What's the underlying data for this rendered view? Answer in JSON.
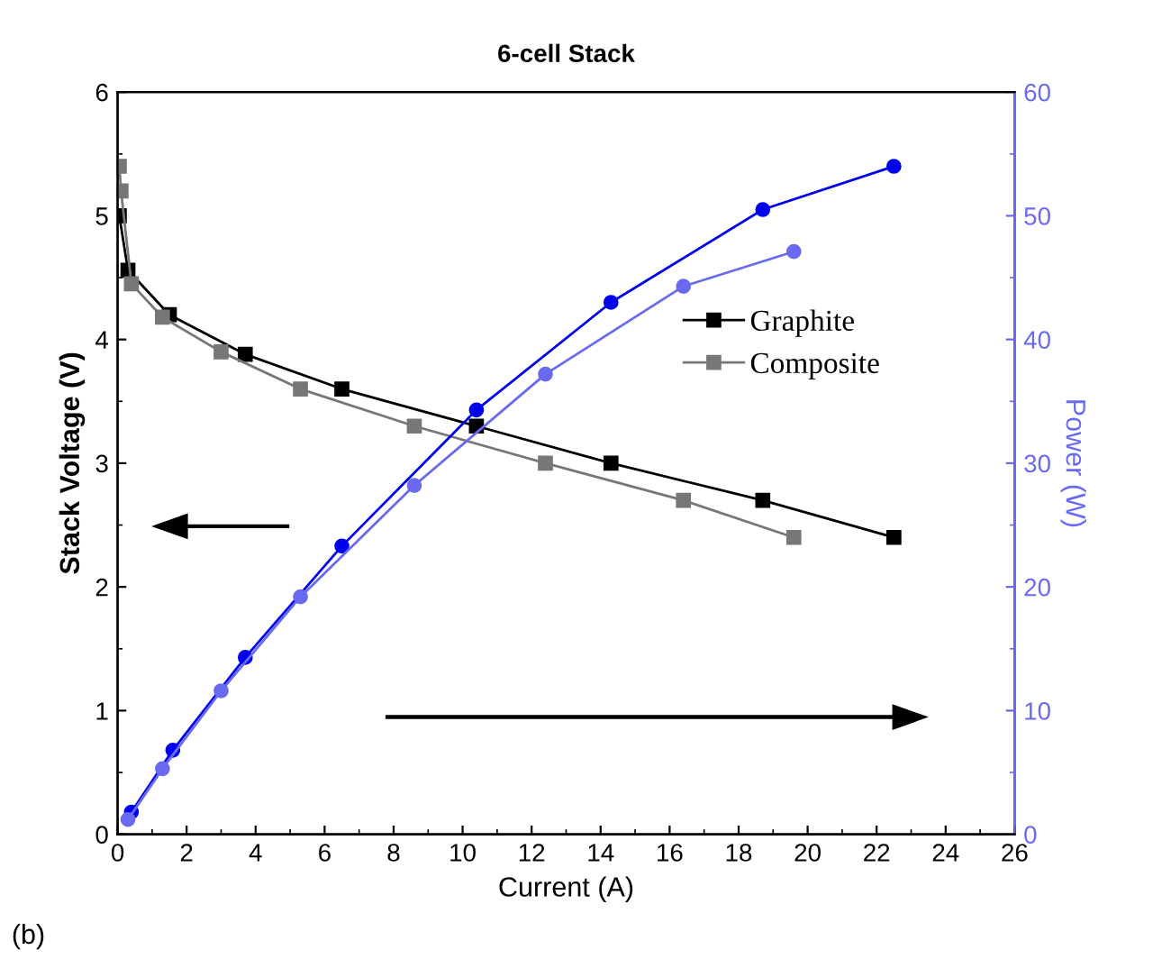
{
  "chart_data": {
    "type": "line",
    "title": "6-cell Stack",
    "xlabel": "Current (A)",
    "ylabel": "Stack Voltage (V)",
    "y2label": "Power (W)",
    "xlim": [
      0,
      26
    ],
    "xticks": [
      0,
      2,
      4,
      6,
      8,
      10,
      12,
      14,
      16,
      18,
      20,
      22,
      24,
      26
    ],
    "ylim": [
      0,
      6
    ],
    "yticks": [
      0,
      1,
      2,
      3,
      4,
      5,
      6
    ],
    "y2lim": [
      0,
      60
    ],
    "y2ticks": [
      0,
      10,
      20,
      30,
      40,
      50,
      60
    ],
    "line_style": "solid",
    "grid": false,
    "legend": "right",
    "annotations": [
      "(b)"
    ],
    "series": [
      {
        "name": "Graphite",
        "color": "#000000",
        "marker": "square",
        "x": [
          0.05,
          0.3,
          1.5,
          3.7,
          6.5,
          10.4,
          14.3,
          18.7,
          22.5
        ],
        "values": [
          5.0,
          4.56,
          4.2,
          3.88,
          3.6,
          3.3,
          3.0,
          2.7,
          2.4
        ]
      },
      {
        "name": "Composite",
        "color": "#777777",
        "marker": "square",
        "x": [
          0.05,
          0.1,
          0.4,
          1.3,
          3.0,
          5.3,
          8.6,
          12.4,
          16.4,
          19.6
        ],
        "values": [
          5.4,
          5.2,
          4.45,
          4.18,
          3.9,
          3.6,
          3.3,
          3.0,
          2.7,
          2.4
        ]
      },
      {
        "color": "#0000ee",
        "axis": "y2",
        "marker": "circle",
        "x": [
          0.4,
          1.6,
          3.7,
          6.5,
          10.4,
          14.3,
          18.7,
          22.5
        ],
        "values": [
          1.8,
          6.8,
          14.3,
          23.3,
          34.3,
          43,
          50.5,
          54
        ]
      },
      {
        "color": "#6a6af0",
        "axis": "y2",
        "marker": "circle",
        "x": [
          0.3,
          1.3,
          3.0,
          5.3,
          8.6,
          12.4,
          16.4,
          19.6
        ],
        "values": [
          1.2,
          5.3,
          11.6,
          19.2,
          28.2,
          37.2,
          44.3,
          47.1
        ]
      }
    ]
  }
}
